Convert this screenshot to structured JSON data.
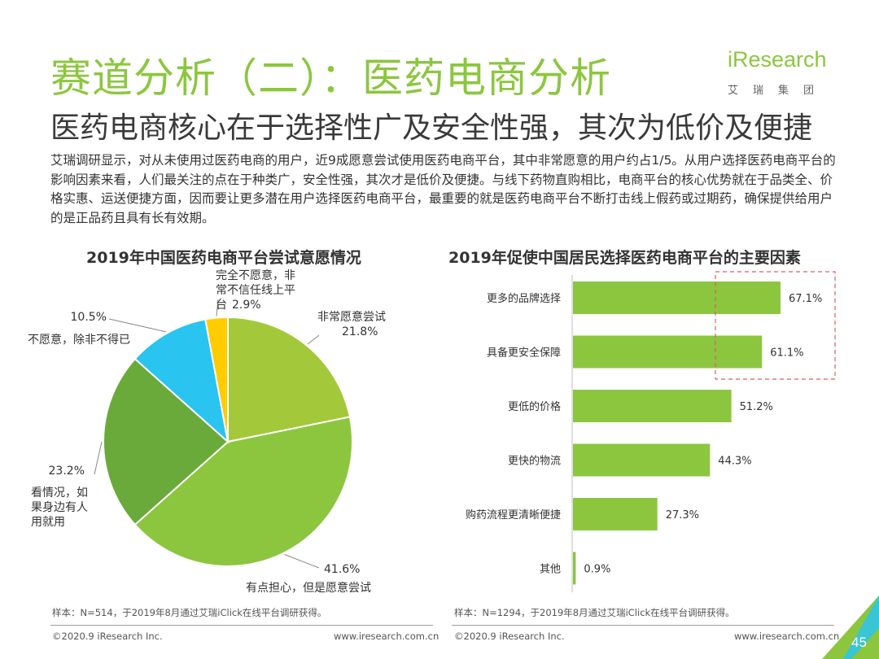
{
  "header": {
    "title": "赛道分析（二）：医药电商分析",
    "subtitle": "医药电商核心在于选择性广及安全性强，其次为低价及便捷"
  },
  "logo": {
    "brand": "iResearch",
    "cn": "艾瑞集团"
  },
  "intro": "艾瑞调研显示，对从未使用过医药电商的用户，近9成愿意尝试使用医药电商平台，其中非常愿意的用户约占1/5。从用户选择医药电商平台的影响因素来看，人们最关注的点在于种类广，安全性强，其次才是低价及便捷。与线下药物直购相比，电商平台的核心优势就在于品类全、价格实惠、运送便捷方面，因而要让更多潜在用户选择医药电商平台，最重要的就是医药电商平台不断打击线上假药或过期药，确保提供给用户的是正品药且具有长有效期。",
  "chart_data": [
    {
      "type": "pie",
      "title": "2019年中国医药电商平台尝试意愿情况",
      "slices": [
        {
          "name": "非常愿意尝试",
          "value": 21.8,
          "label": "21.8%",
          "color": "#a3c93a"
        },
        {
          "name": "有点担心，但是愿意尝试",
          "value": 41.6,
          "label": "41.6%",
          "color": "#8cc63f"
        },
        {
          "name": "看情况，如果身边有人用就用",
          "value": 23.2,
          "label": "23.2%",
          "color": "#6aaa3a"
        },
        {
          "name": "不愿意，除非不得已",
          "value": 10.5,
          "label": "10.5%",
          "color": "#29c4ef"
        },
        {
          "name": "完全不愿意，非常不信任线上平台",
          "value": 2.9,
          "label": "2.9%",
          "color": "#ffcc00"
        }
      ]
    },
    {
      "type": "bar",
      "orientation": "horizontal",
      "title": "2019年促使中国居民选择医药电商平台的主要因素",
      "categories": [
        "更多的品牌选择",
        "具备更安全保障",
        "更低的价格",
        "更快的物流",
        "购药流程更清晰便捷",
        "其他"
      ],
      "values": [
        67.1,
        61.1,
        51.2,
        44.3,
        27.3,
        0.9
      ],
      "labels": [
        "67.1%",
        "61.1%",
        "51.2%",
        "44.3%",
        "27.3%",
        "0.9%"
      ],
      "color": "#8cc63f",
      "highlight": {
        "categories": [
          "更多的品牌选择",
          "具备更安全保障"
        ],
        "style": "dashed",
        "color": "#e05a6a"
      }
    }
  ],
  "notes": {
    "left": "样本：N=514，于2019年8月通过艾瑞iClick在线平台调研获得。",
    "right": "样本：N=1294，于2019年8月通过艾瑞iClick在线平台调研获得。"
  },
  "footer": {
    "copyright": "©2020.9 iResearch Inc.",
    "url": "www.iresearch.com.cn",
    "page": "45"
  },
  "colors": {
    "accent": "#8cc63f",
    "cyan": "#29c4ef",
    "yellow": "#ffcc00"
  }
}
